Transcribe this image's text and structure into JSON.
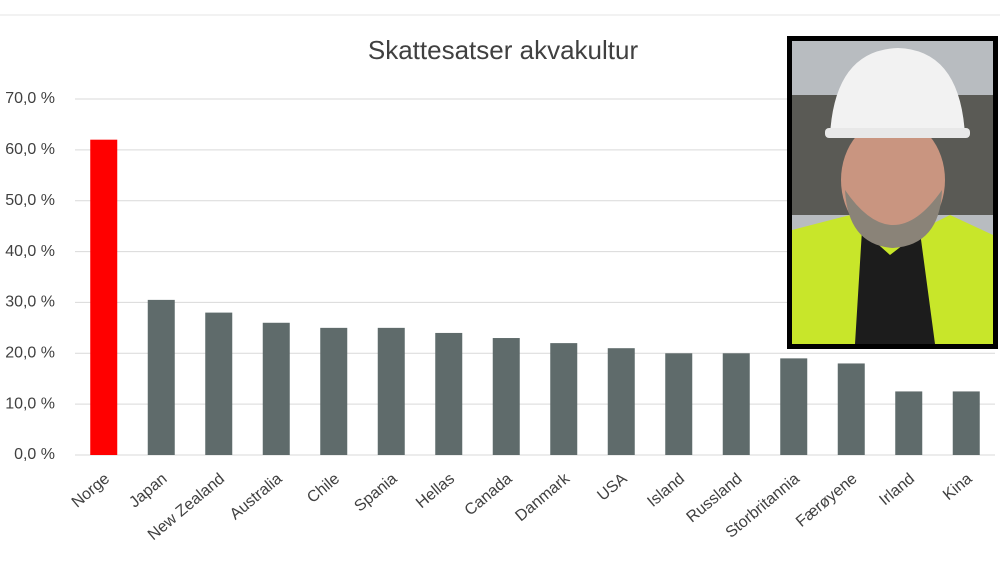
{
  "chart_data": {
    "type": "bar",
    "title": "Skattesatser akvakultur",
    "categories": [
      "Norge",
      "Japan",
      "New Zealand",
      "Australia",
      "Chile",
      "Spania",
      "Hellas",
      "Canada",
      "Danmark",
      "USA",
      "Island",
      "Russland",
      "Storbritannia",
      "Færøyene",
      "Irland",
      "Kina"
    ],
    "values": [
      62,
      30.5,
      28,
      26,
      25,
      25,
      24,
      23,
      22,
      21,
      20,
      20,
      19,
      18,
      12.5,
      12.5
    ],
    "colors": [
      "#ff0000",
      "#5f6b6b",
      "#5f6b6b",
      "#5f6b6b",
      "#5f6b6b",
      "#5f6b6b",
      "#5f6b6b",
      "#5f6b6b",
      "#5f6b6b",
      "#5f6b6b",
      "#5f6b6b",
      "#5f6b6b",
      "#5f6b6b",
      "#5f6b6b",
      "#5f6b6b",
      "#5f6b6b"
    ],
    "ylim": [
      0,
      70
    ],
    "yticks": [
      {
        "value": 0,
        "label": "0,0 %"
      },
      {
        "value": 10,
        "label": "10,0 %"
      },
      {
        "value": 20,
        "label": "20,0 %"
      },
      {
        "value": 30,
        "label": "30,0 %"
      },
      {
        "value": 40,
        "label": "40,0 %"
      },
      {
        "value": 50,
        "label": "50,0 %"
      },
      {
        "value": 60,
        "label": "60,0 %"
      },
      {
        "value": 70,
        "label": "70,0 %"
      }
    ],
    "grid": true
  }
}
